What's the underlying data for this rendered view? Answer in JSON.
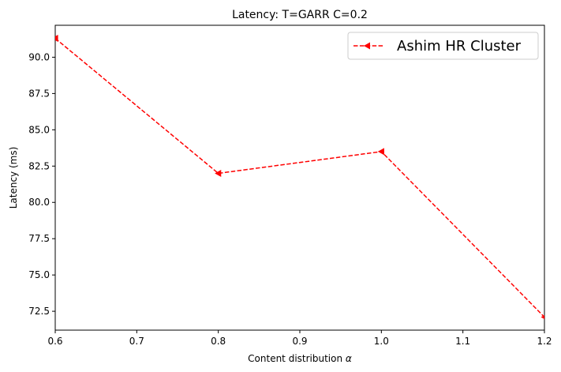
{
  "chart_data": {
    "type": "line",
    "title": "Latency: T=GARR C=0.2",
    "xlabel": "Content distribution",
    "xlabel_symbol": "α",
    "ylabel": "Latency (ms)",
    "xlim": [
      0.6,
      1.2
    ],
    "ylim": [
      71.2,
      92.2
    ],
    "xticks": [
      0.6,
      0.7,
      0.8,
      0.9,
      1.0,
      1.1,
      1.2
    ],
    "xtick_labels": [
      "0.6",
      "0.7",
      "0.8",
      "0.9",
      "1.0",
      "1.1",
      "1.2"
    ],
    "yticks": [
      72.5,
      75.0,
      77.5,
      80.0,
      82.5,
      85.0,
      87.5,
      90.0
    ],
    "ytick_labels": [
      "72.5",
      "75.0",
      "77.5",
      "80.0",
      "82.5",
      "85.0",
      "87.5",
      "90.0"
    ],
    "grid": false,
    "legend_position": "top-right",
    "series": [
      {
        "name": "Ashim HR Cluster",
        "color": "#ff0000",
        "line_style": "dashed",
        "marker": "triangle-left",
        "x": [
          0.6,
          0.8,
          1.0,
          1.2
        ],
        "y": [
          91.3,
          82.0,
          83.5,
          72.1
        ]
      }
    ]
  }
}
